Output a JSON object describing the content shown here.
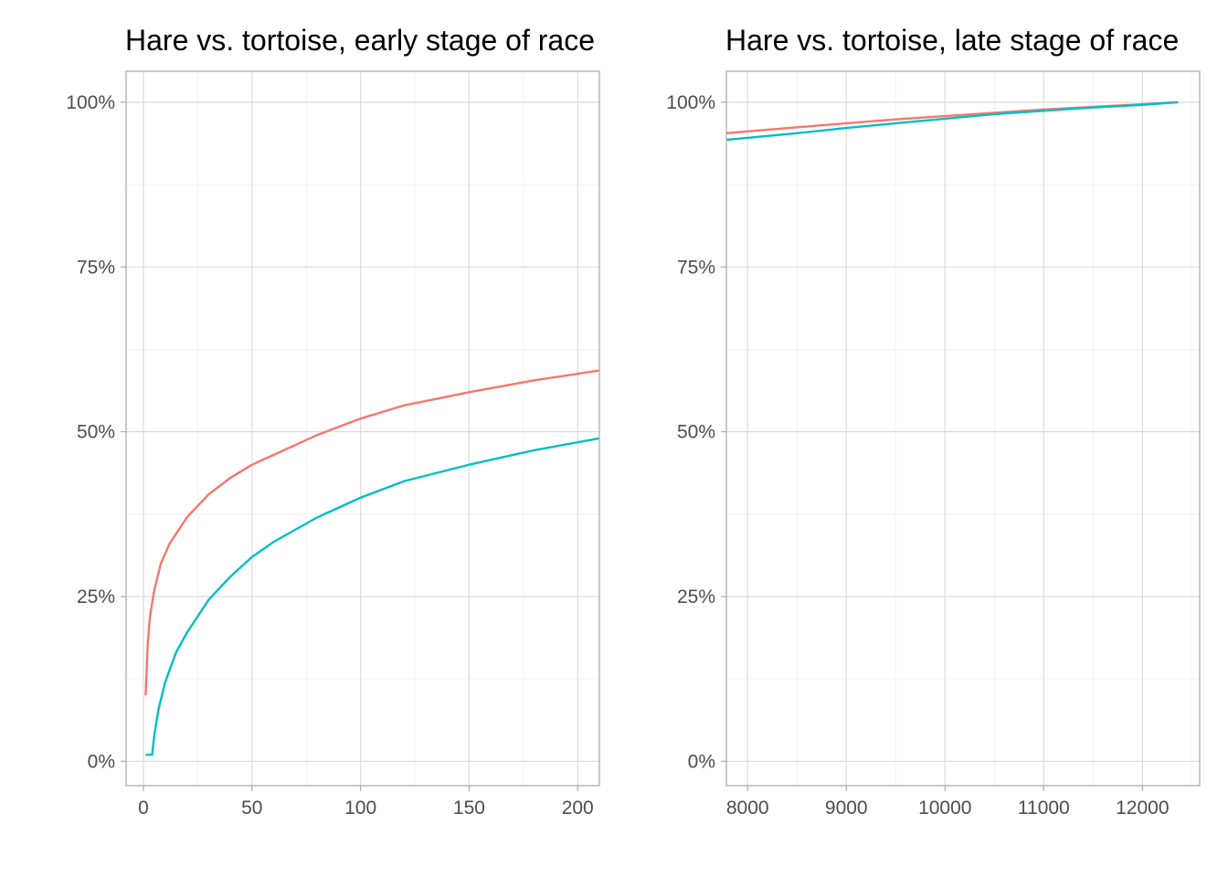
{
  "chart_data": [
    {
      "type": "line",
      "title": "Hare vs. tortoise, early stage of race",
      "xlabel": "",
      "ylabel": "",
      "xlim": [
        -8,
        210
      ],
      "ylim": [
        -0.037,
        1.047
      ],
      "x_ticks": [
        0,
        50,
        100,
        150,
        200
      ],
      "x_tick_labels": [
        "0",
        "50",
        "100",
        "150",
        "200"
      ],
      "y_ticks": [
        0,
        0.25,
        0.5,
        0.75,
        1.0
      ],
      "y_tick_labels": [
        "0%",
        "25%",
        "50%",
        "75%",
        "100%"
      ],
      "grid": true,
      "legend": "none",
      "series": [
        {
          "color": "#F8766D",
          "x": [
            1,
            2,
            3,
            5,
            8,
            12,
            20,
            30,
            40,
            50,
            60,
            80,
            100,
            120,
            150,
            180,
            210
          ],
          "y": [
            0.1,
            0.18,
            0.22,
            0.26,
            0.3,
            0.33,
            0.37,
            0.405,
            0.43,
            0.45,
            0.465,
            0.495,
            0.52,
            0.54,
            0.56,
            0.578,
            0.593
          ]
        },
        {
          "color": "#00BFC4",
          "x": [
            1,
            4,
            5,
            7,
            10,
            15,
            20,
            30,
            40,
            50,
            60,
            80,
            100,
            120,
            150,
            180,
            210
          ],
          "y": [
            0.01,
            0.01,
            0.04,
            0.08,
            0.12,
            0.165,
            0.195,
            0.245,
            0.28,
            0.31,
            0.333,
            0.37,
            0.4,
            0.425,
            0.45,
            0.472,
            0.49
          ]
        }
      ]
    },
    {
      "type": "line",
      "title": "Hare vs. tortoise, late stage of race",
      "xlabel": "",
      "ylabel": "",
      "xlim": [
        7785,
        12580
      ],
      "ylim": [
        -0.037,
        1.047
      ],
      "x_ticks": [
        8000,
        9000,
        10000,
        11000,
        12000
      ],
      "x_tick_labels": [
        "8000",
        "9000",
        "10000",
        "11000",
        "12000"
      ],
      "y_ticks": [
        0,
        0.25,
        0.5,
        0.75,
        1.0
      ],
      "y_tick_labels": [
        "0%",
        "25%",
        "50%",
        "75%",
        "100%"
      ],
      "grid": true,
      "legend": "none",
      "series": [
        {
          "color": "#F8766D",
          "x": [
            7785,
            8500,
            9000,
            9500,
            10000,
            10500,
            11000,
            11500,
            12000,
            12360
          ],
          "y": [
            0.953,
            0.962,
            0.968,
            0.974,
            0.979,
            0.984,
            0.989,
            0.993,
            0.997,
            1.0
          ]
        },
        {
          "color": "#00BFC4",
          "x": [
            7785,
            8500,
            9000,
            9500,
            10000,
            10500,
            11000,
            11500,
            12000,
            12360
          ],
          "y": [
            0.943,
            0.953,
            0.961,
            0.968,
            0.975,
            0.982,
            0.987,
            0.992,
            0.996,
            1.0
          ]
        }
      ]
    }
  ]
}
